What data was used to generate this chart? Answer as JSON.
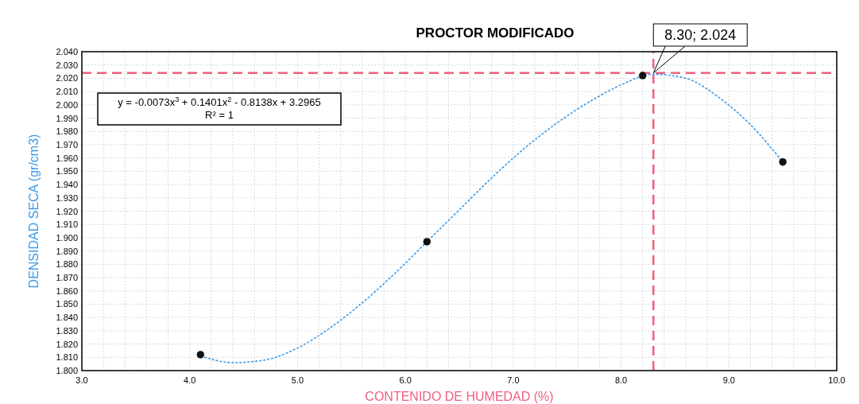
{
  "chart_data": {
    "type": "scatter",
    "title": "PROCTOR MODIFICADO",
    "xlabel": "CONTENIDO DE HUMEDAD (%)",
    "ylabel": "DENSIDAD SECA (gr/cm3)",
    "xlim": [
      3.0,
      10.0
    ],
    "xticks": [
      {
        "value": 3.0,
        "label": "3.0"
      },
      {
        "value": 3.2,
        "label": null
      },
      {
        "value": 3.4,
        "label": null
      },
      {
        "value": 3.6,
        "label": null
      },
      {
        "value": 3.8,
        "label": null
      },
      {
        "value": 4.0,
        "label": "4.0"
      },
      {
        "value": 4.2,
        "label": null
      },
      {
        "value": 4.4,
        "label": null
      },
      {
        "value": 4.6,
        "label": null
      },
      {
        "value": 4.8,
        "label": null
      },
      {
        "value": 5.0,
        "label": "5.0"
      },
      {
        "value": 5.2,
        "label": null
      },
      {
        "value": 5.4,
        "label": null
      },
      {
        "value": 5.6,
        "label": null
      },
      {
        "value": 5.8,
        "label": null
      },
      {
        "value": 6.0,
        "label": "6.0"
      },
      {
        "value": 6.2,
        "label": null
      },
      {
        "value": 6.4,
        "label": null
      },
      {
        "value": 6.6,
        "label": null
      },
      {
        "value": 6.8,
        "label": null
      },
      {
        "value": 7.0,
        "label": "7.0"
      },
      {
        "value": 7.2,
        "label": null
      },
      {
        "value": 7.4,
        "label": null
      },
      {
        "value": 7.6,
        "label": null
      },
      {
        "value": 7.8,
        "label": null
      },
      {
        "value": 8.0,
        "label": "8.0"
      },
      {
        "value": 8.2,
        "label": null
      },
      {
        "value": 8.4,
        "label": null
      },
      {
        "value": 8.6,
        "label": null
      },
      {
        "value": 8.8,
        "label": null
      },
      {
        "value": 9.0,
        "label": "9.0"
      },
      {
        "value": 9.2,
        "label": null
      },
      {
        "value": 9.4,
        "label": null
      },
      {
        "value": 9.6,
        "label": null
      },
      {
        "value": 9.8,
        "label": null
      },
      {
        "value": 10.0,
        "label": "10.0"
      }
    ],
    "ylim": [
      1.8,
      2.04
    ],
    "yticks": [
      {
        "value": 1.8,
        "label": "1.800"
      },
      {
        "value": 1.81,
        "label": "1.810"
      },
      {
        "value": 1.82,
        "label": "1.820"
      },
      {
        "value": 1.83,
        "label": "1.830"
      },
      {
        "value": 1.84,
        "label": "1.840"
      },
      {
        "value": 1.85,
        "label": "1.850"
      },
      {
        "value": 1.86,
        "label": "1.860"
      },
      {
        "value": 1.87,
        "label": "1.870"
      },
      {
        "value": 1.88,
        "label": "1.880"
      },
      {
        "value": 1.89,
        "label": "1.890"
      },
      {
        "value": 1.9,
        "label": "1.900"
      },
      {
        "value": 1.91,
        "label": "1.910"
      },
      {
        "value": 1.92,
        "label": "1.920"
      },
      {
        "value": 1.93,
        "label": "1.930"
      },
      {
        "value": 1.94,
        "label": "1.940"
      },
      {
        "value": 1.95,
        "label": "1.950"
      },
      {
        "value": 1.96,
        "label": "1.960"
      },
      {
        "value": 1.97,
        "label": "1.970"
      },
      {
        "value": 1.98,
        "label": "1.980"
      },
      {
        "value": 1.99,
        "label": "1.990"
      },
      {
        "value": 2.0,
        "label": "2.000"
      },
      {
        "value": 2.01,
        "label": "2.010"
      },
      {
        "value": 2.02,
        "label": "2.020"
      },
      {
        "value": 2.03,
        "label": "2.030"
      },
      {
        "value": 2.04,
        "label": "2.040"
      }
    ],
    "grid": true,
    "series": [
      {
        "type": "line",
        "color": "#3d9be9",
        "line_style": "dotted",
        "marker": "none",
        "x": [
          4.1,
          4.4,
          4.7,
          5.0,
          5.3,
          5.6,
          5.9,
          6.2,
          6.5,
          6.8,
          7.1,
          7.4,
          7.7,
          8.0,
          8.3,
          8.6,
          8.9,
          9.2,
          9.5
        ],
        "values": [
          1.811,
          1.806,
          1.808,
          1.817,
          1.832,
          1.851,
          1.873,
          1.897,
          1.921,
          1.945,
          1.967,
          1.986,
          2.002,
          2.015,
          2.023,
          2.02,
          2.006,
          1.985,
          1.957
        ]
      },
      {
        "type": "scatter",
        "color": "#111111",
        "marker": "circle",
        "x": [
          4.1,
          6.2,
          8.2,
          9.5
        ],
        "values": [
          1.812,
          1.897,
          2.022,
          1.957
        ]
      }
    ],
    "ref_lines": [
      {
        "axis": "x",
        "value": 8.3,
        "color": "#f0607e",
        "line_style": "dashed"
      },
      {
        "axis": "y",
        "value": 2.024,
        "color": "#f0607e",
        "line_style": "dashed"
      }
    ],
    "annotations": [
      "y = -0.0073x$^{3}$ + 0.1401x$^{2}$ - 0.8138x + 3.2965\nR² = 1",
      {
        "text": "8.30; 2.024",
        "x": 8.3,
        "y": 2.024
      }
    ]
  }
}
